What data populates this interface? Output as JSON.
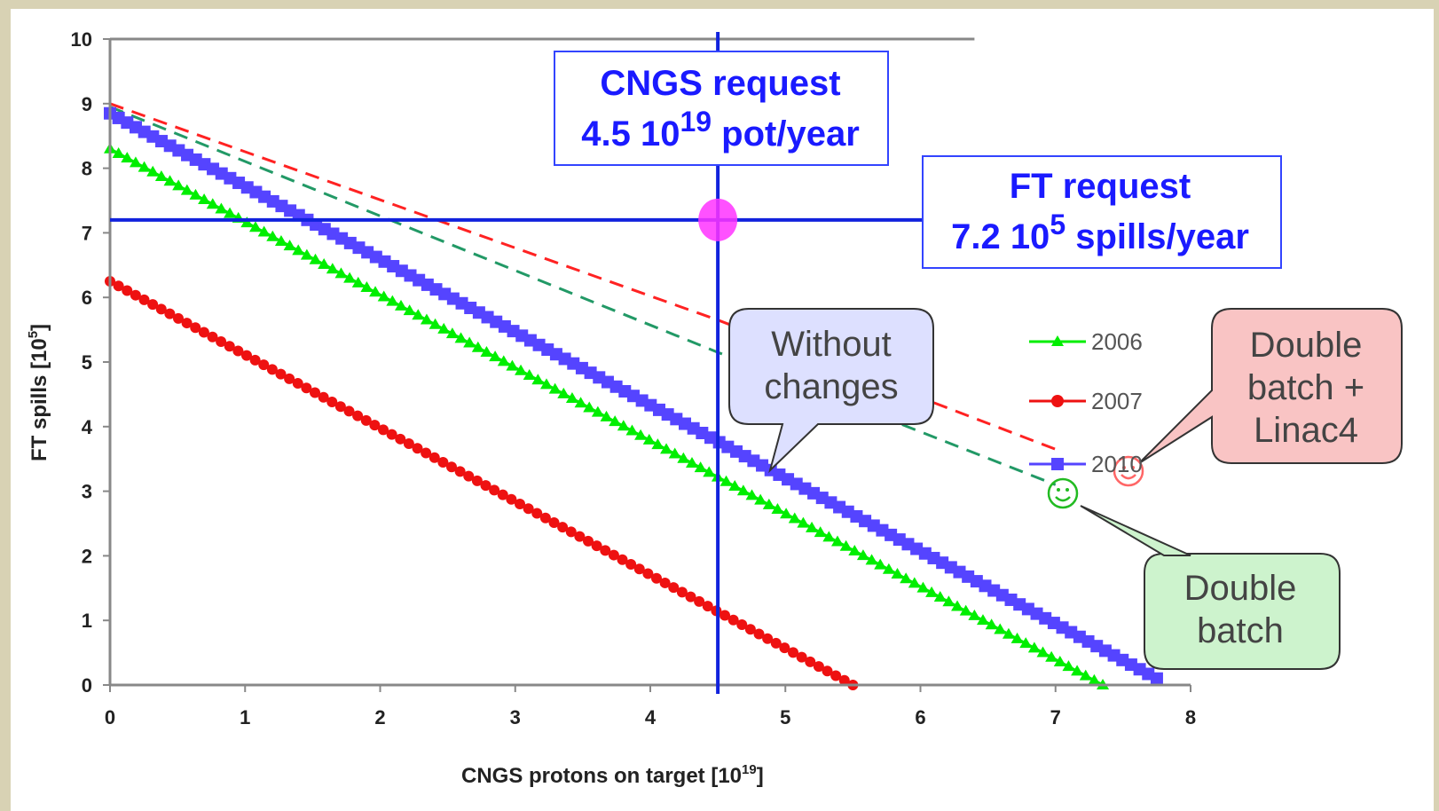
{
  "chart_data": {
    "type": "line",
    "xlabel": "CNGS protons on target [10",
    "xlabel_sup": "19",
    "xlabel_end": "]",
    "ylabel": "FT spills [10",
    "ylabel_sup": "5",
    "ylabel_end": "]",
    "xlim": [
      0,
      8
    ],
    "ylim": [
      0,
      10
    ],
    "x_ticks": [
      "0",
      "1",
      "2",
      "3",
      "4",
      "5",
      "6",
      "7",
      "8"
    ],
    "y_ticks": [
      "0",
      "1",
      "2",
      "3",
      "4",
      "5",
      "6",
      "7",
      "8",
      "9",
      "10"
    ],
    "grid": false,
    "legend_position": "right",
    "series": [
      {
        "name": "2006",
        "color": "#00ee00",
        "marker": "triangle",
        "x": [
          0,
          7.35
        ],
        "y": [
          8.3,
          0
        ]
      },
      {
        "name": "2007",
        "color": "#ee1111",
        "marker": "circle",
        "x": [
          0,
          5.5
        ],
        "y": [
          6.25,
          0
        ]
      },
      {
        "name": "2010",
        "color": "#5544ff",
        "marker": "square",
        "x": [
          0,
          7.75
        ],
        "y": [
          8.85,
          0.1
        ]
      }
    ],
    "projections": [
      {
        "color": "#ff2222",
        "style": "dashed",
        "x": [
          0,
          4.5,
          7.0
        ],
        "y": [
          9.0,
          5.65,
          3.65
        ]
      },
      {
        "color": "#229966",
        "style": "dashed",
        "x": [
          0,
          4.5,
          7.0
        ],
        "y": [
          8.95,
          5.15,
          3.1
        ]
      }
    ],
    "reference_lines": {
      "x": 4.5,
      "y": 7.2
    },
    "target_point": {
      "x": 4.5,
      "y": 7.2,
      "color": "#ff33ff"
    },
    "top_border_end_x": 6.4,
    "annotations": {
      "cngs_request": {
        "line1": "CNGS request",
        "line2_a": "4.5 10",
        "line2_sup": "19",
        "line2_b": " pot/year"
      },
      "ft_request": {
        "line1": "FT request",
        "line2_a": "7.2 10",
        "line2_sup": "5",
        "line2_b": " spills/year"
      },
      "without_changes": {
        "line1": "Without",
        "line2": "changes"
      },
      "double_batch_linac4": {
        "line1": "Double",
        "line2": "batch +",
        "line3": "Linac4"
      },
      "double_batch": {
        "line1": "Double",
        "line2": "batch"
      }
    }
  }
}
